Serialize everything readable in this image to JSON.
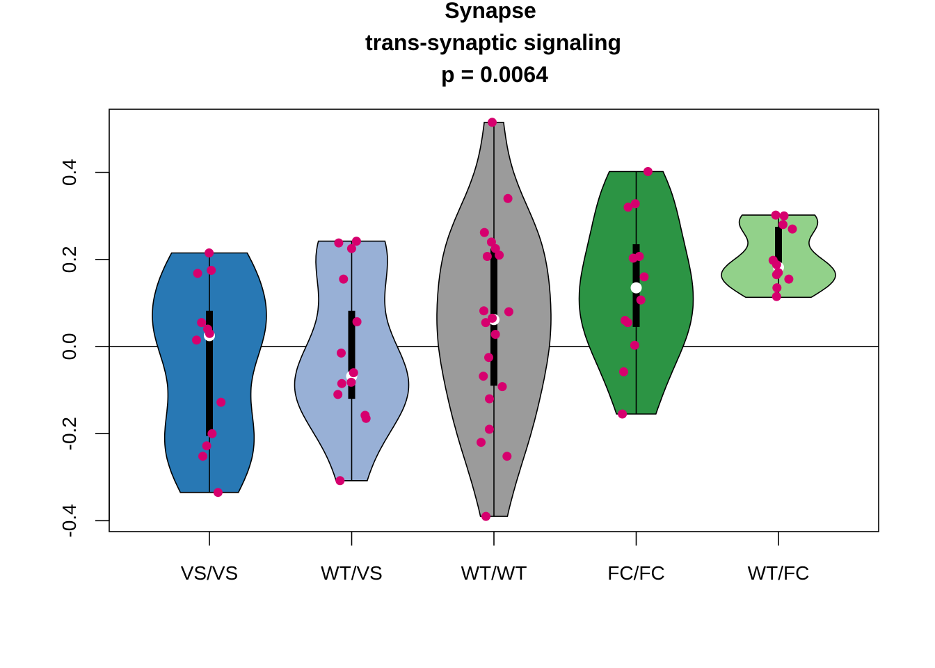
{
  "chart_data": {
    "type": "violin",
    "title": [
      "Synapse",
      "trans-synaptic signaling",
      "p = 0.0064"
    ],
    "xlabel": "",
    "ylabel": "",
    "categories": [
      "VS/VS",
      "WT/VS",
      "WT/WT",
      "FC/FC",
      "WT/FC"
    ],
    "yticks": [
      "-0.4",
      "-0.2",
      "0.0",
      "0.2",
      "0.4"
    ],
    "ylim": [
      -0.425,
      0.545
    ],
    "reference_line": 0.0,
    "point_color": "#d6006e",
    "groups": [
      {
        "name": "VS/VS",
        "color": "#2878b4",
        "min": -0.335,
        "max": 0.215,
        "q1": -0.205,
        "median": 0.025,
        "q3": 0.082,
        "points": [
          0.215,
          0.175,
          0.168,
          0.055,
          0.04,
          0.03,
          0.015,
          -0.128,
          -0.2,
          -0.228,
          -0.252,
          -0.335
        ]
      },
      {
        "name": "WT/VS",
        "color": "#98b0d6",
        "min": -0.308,
        "max": 0.242,
        "q1": -0.12,
        "median": -0.068,
        "q3": 0.082,
        "points": [
          0.242,
          0.238,
          0.225,
          0.155,
          0.057,
          -0.015,
          -0.06,
          -0.082,
          -0.085,
          -0.11,
          -0.158,
          -0.165,
          -0.308
        ]
      },
      {
        "name": "WT/WT",
        "color": "#9b9b9b",
        "min": -0.39,
        "max": 0.515,
        "q1": -0.09,
        "median": 0.062,
        "q3": 0.225,
        "points": [
          0.515,
          0.34,
          0.262,
          0.24,
          0.225,
          0.21,
          0.207,
          0.082,
          0.08,
          0.065,
          0.055,
          0.028,
          -0.025,
          -0.068,
          -0.092,
          -0.12,
          -0.19,
          -0.22,
          -0.252,
          -0.39
        ]
      },
      {
        "name": "FC/FC",
        "color": "#2c9444",
        "min": -0.155,
        "max": 0.402,
        "q1": 0.045,
        "median": 0.135,
        "q3": 0.235,
        "points": [
          0.402,
          0.328,
          0.32,
          0.207,
          0.203,
          0.16,
          0.107,
          0.06,
          0.055,
          0.003,
          -0.058,
          -0.155
        ]
      },
      {
        "name": "WT/FC",
        "color": "#92d18a",
        "min": 0.113,
        "max": 0.302,
        "q1": 0.165,
        "median": 0.182,
        "q3": 0.275,
        "points": [
          0.302,
          0.3,
          0.28,
          0.27,
          0.198,
          0.188,
          0.17,
          0.165,
          0.155,
          0.135,
          0.115
        ]
      }
    ]
  }
}
